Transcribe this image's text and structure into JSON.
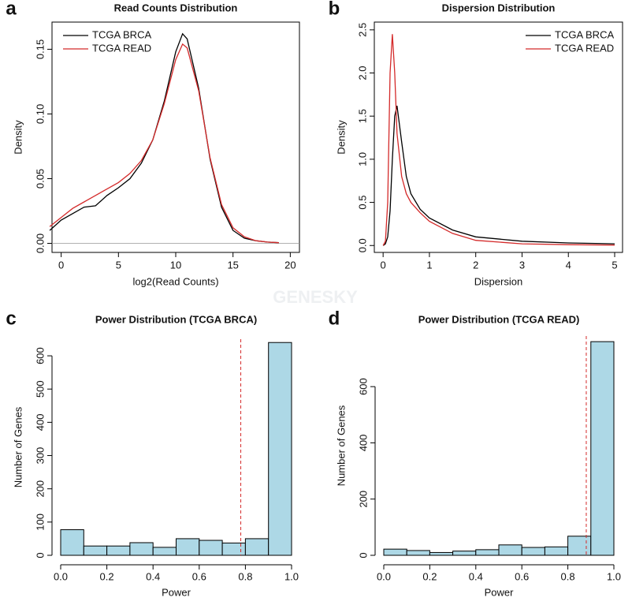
{
  "watermark": "GENESKY",
  "chart_data": [
    {
      "type": "line",
      "panel": "a",
      "title": "Read Counts Distribution",
      "x_label": "log2(Read Counts)",
      "y_label": "Density",
      "x": [
        -1,
        0,
        1,
        2,
        3,
        4,
        5,
        6,
        7,
        8,
        9,
        10,
        10.6,
        11,
        12,
        13,
        14,
        15,
        16,
        17,
        18,
        19
      ],
      "series": [
        {
          "name": "TCGA BRCA",
          "color": "#000000",
          "values": [
            0.01,
            0.018,
            0.023,
            0.028,
            0.029,
            0.037,
            0.043,
            0.05,
            0.062,
            0.08,
            0.11,
            0.148,
            0.162,
            0.158,
            0.12,
            0.065,
            0.028,
            0.01,
            0.004,
            0.002,
            0.001,
            0.0005
          ]
        },
        {
          "name": "TCGA READ",
          "color": "#d42a2a",
          "values": [
            0.013,
            0.02,
            0.027,
            0.032,
            0.037,
            0.042,
            0.047,
            0.054,
            0.064,
            0.08,
            0.108,
            0.142,
            0.154,
            0.151,
            0.118,
            0.066,
            0.03,
            0.012,
            0.005,
            0.002,
            0.001,
            0.0005
          ]
        }
      ],
      "xlim": [
        -0.8,
        20.8
      ],
      "ylim": [
        -0.007,
        0.171
      ],
      "xticks": [
        0,
        5,
        10,
        15,
        20
      ],
      "yticks": [
        {
          "value": 0,
          "label": "0.00"
        },
        0.05,
        {
          "value": 0.1,
          "label": "0.10"
        },
        0.15
      ],
      "hline": 0,
      "legend": "upper left",
      "box": true
    },
    {
      "type": "line",
      "panel": "b",
      "title": "Dispersion Distribution",
      "x_label": "Dispersion",
      "y_label": "Density",
      "x": [
        0,
        0.05,
        0.1,
        0.15,
        0.2,
        0.25,
        0.3,
        0.4,
        0.5,
        0.6,
        0.8,
        1,
        1.5,
        2,
        3,
        4,
        5
      ],
      "series": [
        {
          "name": "TCGA BRCA",
          "color": "#000000",
          "values": [
            0,
            0.02,
            0.1,
            0.4,
            1.0,
            1.5,
            1.62,
            1.2,
            0.8,
            0.6,
            0.42,
            0.32,
            0.18,
            0.1,
            0.05,
            0.03,
            0.02
          ]
        },
        {
          "name": "TCGA READ",
          "color": "#d42a2a",
          "values": [
            0,
            0.05,
            0.5,
            2.0,
            2.45,
            2.0,
            1.3,
            0.8,
            0.6,
            0.5,
            0.38,
            0.28,
            0.14,
            0.06,
            0.02,
            0.01,
            0.005
          ]
        }
      ],
      "xlim": [
        -0.19,
        5.17
      ],
      "ylim": [
        -0.08,
        2.59
      ],
      "xticks": [
        0,
        1,
        2,
        3,
        4,
        5
      ],
      "yticks": [
        {
          "value": 0,
          "label": "0.0"
        },
        0.5,
        {
          "value": 1,
          "label": "1.0"
        },
        1.5,
        {
          "value": 2,
          "label": "2.0"
        },
        2.5
      ],
      "legend": "upper right",
      "box": true
    },
    {
      "type": "histogram",
      "panel": "c",
      "title": "Power Distribution (TCGA BRCA)",
      "x_label": "Power",
      "y_label": "Number of Genes",
      "bins": [
        0,
        0.1,
        0.2,
        0.3,
        0.4,
        0.5,
        0.6,
        0.7,
        0.8,
        0.9,
        1
      ],
      "counts": [
        77,
        28,
        28,
        38,
        24,
        50,
        45,
        37,
        50,
        640
      ],
      "color": "#add8e6",
      "xlim": [
        0,
        1
      ],
      "ylim": [
        0,
        650
      ],
      "xticks": [
        {
          "value": 0,
          "label": "0.0"
        },
        0.2,
        0.4,
        0.6,
        0.8,
        {
          "value": 1,
          "label": "1.0"
        }
      ],
      "yticks": [
        0,
        100,
        200,
        300,
        400,
        500,
        600
      ],
      "vline": 0.78,
      "vline_color": "#d42a2a"
    },
    {
      "type": "histogram",
      "panel": "d",
      "title": "Power Distribution (TCGA READ)",
      "x_label": "Power",
      "y_label": "Number of Genes",
      "bins": [
        0,
        0.1,
        0.2,
        0.3,
        0.4,
        0.5,
        0.6,
        0.7,
        0.8,
        0.9,
        1
      ],
      "counts": [
        22,
        17,
        10,
        15,
        20,
        37,
        28,
        30,
        68,
        760
      ],
      "color": "#add8e6",
      "xlim": [
        0,
        1
      ],
      "ylim": [
        0,
        780
      ],
      "xticks": [
        {
          "value": 0,
          "label": "0.0"
        },
        0.2,
        0.4,
        0.6,
        0.8,
        {
          "value": 1,
          "label": "1.0"
        }
      ],
      "yticks": [
        0,
        200,
        400,
        600
      ],
      "vline": 0.88,
      "vline_color": "#d42a2a"
    }
  ]
}
